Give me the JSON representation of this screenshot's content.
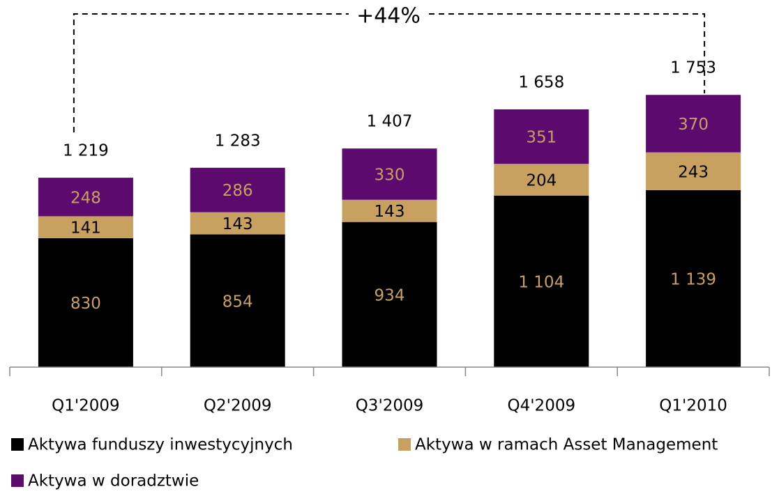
{
  "chart_data": {
    "type": "stacked_bar",
    "categories": [
      "Q1'2009",
      "Q2'2009",
      "Q3'2009",
      "Q4'2009",
      "Q1'2010"
    ],
    "series": [
      {
        "name": "Aktywa funduszy inwestycyjnych",
        "color": "#000000",
        "label_color": "#c8a060",
        "values": [
          830,
          854,
          934,
          1104,
          1139
        ],
        "value_labels": [
          "830",
          "854",
          "934",
          "1 104",
          "1 139"
        ]
      },
      {
        "name": "Aktywa w ramach Asset Management",
        "color": "#c8a060",
        "label_color": "#000000",
        "values": [
          141,
          143,
          143,
          204,
          243
        ]
      },
      {
        "name": "Aktywa w doradztwie",
        "color": "#5c0a6e",
        "label_color": "#c8a060",
        "values": [
          248,
          286,
          330,
          351,
          370
        ]
      }
    ],
    "totals": [
      1219,
      1283,
      1407,
      1658,
      1753
    ],
    "total_labels": [
      "1 219",
      "1 283",
      "1 407",
      "1 658",
      "1 753"
    ],
    "annotation": "+44%"
  }
}
